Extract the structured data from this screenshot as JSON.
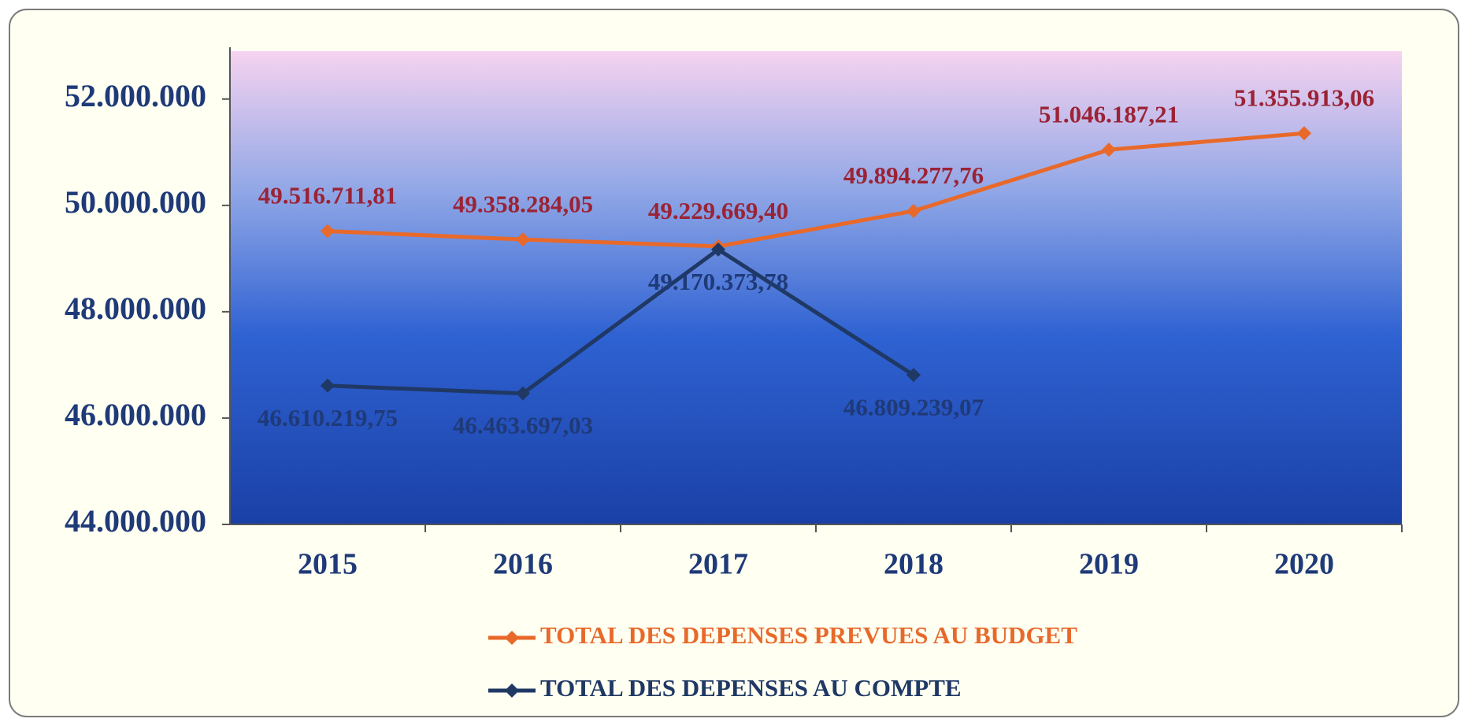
{
  "chart_data": {
    "type": "line",
    "categories": [
      "2015",
      "2016",
      "2017",
      "2018",
      "2019",
      "2020"
    ],
    "series": [
      {
        "name": "TOTAL DES DEPENSES PREVUES AU BUDGET",
        "color": "#e8692a",
        "label_color": "#9b2335",
        "values": [
          49516711.81,
          49358284.05,
          49229669.4,
          49894277.76,
          51046187.21,
          51355913.06
        ],
        "value_labels": [
          "49.516.711,81",
          "49.358.284,05",
          "49.229.669,40",
          "49.894.277,76",
          "51.046.187,21",
          "51.355.913,06"
        ]
      },
      {
        "name": "TOTAL DES DEPENSES AU COMPTE",
        "color": "#1f3864",
        "label_color": "#1f3a78",
        "values": [
          46610219.75,
          46463697.03,
          49170373.78,
          46809239.07,
          null,
          null
        ],
        "value_labels": [
          "46.610.219,75",
          "46.463.697,03",
          "49.170.373,78",
          "46.809.239,07",
          null,
          null
        ]
      }
    ],
    "ylim": [
      44000000,
      52900000
    ],
    "yticks": [
      {
        "value": 44000000,
        "label": "44.000.000"
      },
      {
        "value": 46000000,
        "label": "46.000.000"
      },
      {
        "value": 48000000,
        "label": "48.000.000"
      },
      {
        "value": 50000000,
        "label": "50.000.000"
      },
      {
        "value": 52000000,
        "label": "52.000.000"
      }
    ],
    "legend": "bottom"
  }
}
